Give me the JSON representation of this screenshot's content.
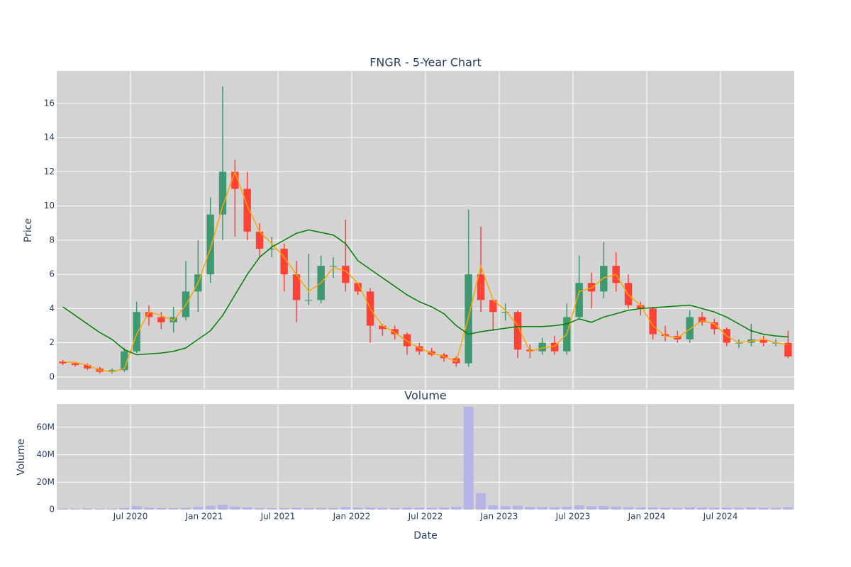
{
  "chart_data": [
    {
      "type": "candlestick",
      "title": "FNGR - 5-Year Chart",
      "y_label": "Price",
      "x": [
        "2020-01",
        "2020-02",
        "2020-03",
        "2020-04",
        "2020-05",
        "2020-06",
        "2020-07",
        "2020-08",
        "2020-09",
        "2020-10",
        "2020-11",
        "2020-12",
        "2021-01",
        "2021-02",
        "2021-03",
        "2021-04",
        "2021-05",
        "2021-06",
        "2021-07",
        "2021-08",
        "2021-09",
        "2021-10",
        "2021-11",
        "2021-12",
        "2022-01",
        "2022-02",
        "2022-03",
        "2022-04",
        "2022-05",
        "2022-06",
        "2022-07",
        "2022-08",
        "2022-09",
        "2022-10",
        "2022-11",
        "2022-12",
        "2023-01",
        "2023-02",
        "2023-03",
        "2023-04",
        "2023-05",
        "2023-06",
        "2023-07",
        "2023-08",
        "2023-09",
        "2023-10",
        "2023-11",
        "2023-12",
        "2024-01",
        "2024-02",
        "2024-03",
        "2024-04",
        "2024-05",
        "2024-06",
        "2024-07",
        "2024-08",
        "2024-09",
        "2024-10",
        "2024-11",
        "2024-12"
      ],
      "open": [
        0.9,
        0.8,
        0.7,
        0.5,
        0.3,
        0.4,
        1.5,
        3.8,
        3.5,
        3.2,
        3.5,
        5,
        6,
        9.5,
        12,
        11,
        8.5,
        7.5,
        7.5,
        6,
        4.5,
        4.5,
        6.5,
        6.5,
        5.5,
        5,
        3,
        2.8,
        2.5,
        1.8,
        1.5,
        1.3,
        1.1,
        0.8,
        6,
        4.5,
        3.8,
        3.8,
        1.6,
        1.5,
        2.0,
        1.5,
        3.5,
        5.5,
        5,
        6.5,
        5.5,
        4.2,
        4,
        2.5,
        2.4,
        2.2,
        3.5,
        3.2,
        2.8,
        2.0,
        2.0,
        2.2,
        2.0,
        2.0
      ],
      "high": [
        1.0,
        0.9,
        0.8,
        0.6,
        0.5,
        1.7,
        4.4,
        4.2,
        3.8,
        4.1,
        6.8,
        8.0,
        10.5,
        17.0,
        12.7,
        12.0,
        9.0,
        8.2,
        7.8,
        6.8,
        7.2,
        7.1,
        7.0,
        9.2,
        5.5,
        5.2,
        3.1,
        3.0,
        2.6,
        2.0,
        1.7,
        1.4,
        1.2,
        9.8,
        8.8,
        4.5,
        4.3,
        3.9,
        1.9,
        2.3,
        2.4,
        4.3,
        7.1,
        6.1,
        7.9,
        7.3,
        6.0,
        4.4,
        4.1,
        3.0,
        2.7,
        3.9,
        3.8,
        3.4,
        2.9,
        2.2,
        3.1,
        2.4,
        2.2,
        2.7
      ],
      "low": [
        0.7,
        0.6,
        0.4,
        0.2,
        0.2,
        0.3,
        1.4,
        3.0,
        2.8,
        2.6,
        3.3,
        3.8,
        5.5,
        8.0,
        8.2,
        8.0,
        7.0,
        7.0,
        5.0,
        3.2,
        4.2,
        4.3,
        5.8,
        5.0,
        4.8,
        2.0,
        2.4,
        2.2,
        1.3,
        1.3,
        1.2,
        0.9,
        0.6,
        0.6,
        3.8,
        2.7,
        3.3,
        1.1,
        1.1,
        1.3,
        1.3,
        1.3,
        3.4,
        4.0,
        4.6,
        5.0,
        4.0,
        3.6,
        2.2,
        2.1,
        2.0,
        2.0,
        3.0,
        2.5,
        1.8,
        1.7,
        1.8,
        1.8,
        1.8,
        1.1
      ],
      "close": [
        0.8,
        0.7,
        0.5,
        0.3,
        0.4,
        1.5,
        3.8,
        3.5,
        3.2,
        3.5,
        5,
        6,
        9.5,
        12,
        11,
        8.5,
        7.5,
        7.5,
        6,
        4.5,
        4.5,
        6.5,
        6.5,
        5.5,
        5,
        3,
        2.8,
        2.5,
        1.8,
        1.5,
        1.3,
        1.1,
        0.8,
        6,
        4.5,
        3.8,
        3.8,
        1.6,
        1.5,
        2.0,
        1.5,
        3.5,
        5.5,
        5,
        6.5,
        5.5,
        4.2,
        4,
        2.5,
        2.4,
        2.2,
        3.5,
        3.2,
        2.8,
        2.0,
        2.0,
        2.2,
        2.0,
        2.0,
        1.2
      ],
      "increasing_color": "#3d9970",
      "decreasing_color": "#ff4136",
      "lines": [
        {
          "color": "#ffa500",
          "values": [
            0.9,
            0.85,
            0.7,
            0.4,
            0.3,
            0.5,
            2.5,
            3.8,
            3.6,
            3.3,
            4.2,
            5.5,
            7.5,
            10,
            12,
            10,
            8.5,
            7.8,
            7,
            6,
            5,
            5.5,
            6.4,
            6.2,
            5.5,
            4,
            3,
            2.6,
            2.1,
            1.7,
            1.4,
            1.2,
            0.9,
            3.5,
            6.5,
            4.5,
            3.9,
            3.0,
            1.5,
            1.7,
            1.8,
            2.5,
            5,
            5.2,
            5.8,
            6,
            4.8,
            4.2,
            3,
            2.4,
            2.3,
            2.8,
            3.3,
            3.1,
            2.4,
            2.0,
            2.1,
            2.2,
            2.0,
            1.9
          ]
        },
        {
          "color": "#008000",
          "values": [
            4.1,
            3.6,
            3.1,
            2.6,
            2.2,
            1.6,
            1.3,
            1.35,
            1.4,
            1.5,
            1.7,
            2.2,
            2.7,
            3.6,
            4.8,
            6.0,
            7.0,
            7.6,
            8.0,
            8.4,
            8.6,
            8.45,
            8.3,
            7.8,
            6.8,
            6.3,
            5.8,
            5.3,
            4.8,
            4.4,
            4.1,
            3.7,
            3.0,
            2.5,
            2.65,
            2.75,
            2.85,
            2.95,
            2.95,
            2.95,
            3.0,
            3.1,
            3.4,
            3.2,
            3.5,
            3.7,
            3.9,
            4.0,
            4.05,
            4.1,
            4.15,
            4.2,
            4.0,
            3.8,
            3.5,
            3.1,
            2.7,
            2.5,
            2.4,
            2.35
          ]
        }
      ],
      "xlim": [
        "2020-01",
        "2025-01"
      ],
      "xticks": [
        {
          "value": "2020-07",
          "label": "Jul 2020"
        },
        {
          "value": "2021-01",
          "label": "Jan 2021"
        },
        {
          "value": "2021-07",
          "label": "Jul 2021"
        },
        {
          "value": "2022-01",
          "label": "Jan 2022"
        },
        {
          "value": "2022-07",
          "label": "Jul 2022"
        },
        {
          "value": "2023-01",
          "label": "Jan 2023"
        },
        {
          "value": "2023-07",
          "label": "Jul 2023"
        },
        {
          "value": "2024-01",
          "label": "Jan 2024"
        },
        {
          "value": "2024-07",
          "label": "Jul 2024"
        }
      ],
      "ylim": [
        -0.75,
        17.9
      ],
      "yticks": [
        0,
        2,
        4,
        6,
        8,
        10,
        12,
        14,
        16
      ],
      "grid": true
    },
    {
      "type": "bar",
      "title": "Volume",
      "y_label": "Volume",
      "x_label": "Date",
      "x": [
        "2020-01",
        "2020-02",
        "2020-03",
        "2020-04",
        "2020-05",
        "2020-06",
        "2020-07",
        "2020-08",
        "2020-09",
        "2020-10",
        "2020-11",
        "2020-12",
        "2021-01",
        "2021-02",
        "2021-03",
        "2021-04",
        "2021-05",
        "2021-06",
        "2021-07",
        "2021-08",
        "2021-09",
        "2021-10",
        "2021-11",
        "2021-12",
        "2022-01",
        "2022-02",
        "2022-03",
        "2022-04",
        "2022-05",
        "2022-06",
        "2022-07",
        "2022-08",
        "2022-09",
        "2022-10",
        "2022-11",
        "2022-12",
        "2023-01",
        "2023-02",
        "2023-03",
        "2023-04",
        "2023-05",
        "2023-06",
        "2023-07",
        "2023-08",
        "2023-09",
        "2023-10",
        "2023-11",
        "2023-12",
        "2024-01",
        "2024-02",
        "2024-03",
        "2024-04",
        "2024-05",
        "2024-06",
        "2024-07",
        "2024-08",
        "2024-09",
        "2024-10",
        "2024-11",
        "2024-12"
      ],
      "values": [
        800000,
        700000,
        900000,
        600000,
        700000,
        1200000,
        2500000,
        1500000,
        1100000,
        1000000,
        1400000,
        2000000,
        2800000,
        3500000,
        2200000,
        1600000,
        1200000,
        1000000,
        1100000,
        1400000,
        1200000,
        1300000,
        1100000,
        1800000,
        1400000,
        1500000,
        1300000,
        1200000,
        1500000,
        1400000,
        1300000,
        1500000,
        2000000,
        75000000,
        12000000,
        3000000,
        2500000,
        2800000,
        2000000,
        1800000,
        1700000,
        2200000,
        3000000,
        2500000,
        2600000,
        2200000,
        1800000,
        1500000,
        1600000,
        1400000,
        1300000,
        1700000,
        1500000,
        1300000,
        1400000,
        1300000,
        1600000,
        1400000,
        1300000,
        1800000
      ],
      "color": "#b4b4e6",
      "xlim": [
        "2020-01",
        "2025-01"
      ],
      "xticks": [
        {
          "value": "2020-07",
          "label": "Jul 2020"
        },
        {
          "value": "2021-01",
          "label": "Jan 2021"
        },
        {
          "value": "2021-07",
          "label": "Jul 2021"
        },
        {
          "value": "2022-01",
          "label": "Jan 2022"
        },
        {
          "value": "2022-07",
          "label": "Jul 2022"
        },
        {
          "value": "2023-01",
          "label": "Jan 2023"
        },
        {
          "value": "2023-07",
          "label": "Jul 2023"
        },
        {
          "value": "2024-01",
          "label": "Jan 2024"
        },
        {
          "value": "2024-07",
          "label": "Jul 2024"
        }
      ],
      "ylim": [
        0,
        77000000
      ],
      "yticks": [
        0,
        {
          "value": 20000000,
          "label": "20M"
        },
        {
          "value": 40000000,
          "label": "40M"
        },
        {
          "value": 60000000,
          "label": "60M"
        }
      ],
      "grid": true
    }
  ]
}
